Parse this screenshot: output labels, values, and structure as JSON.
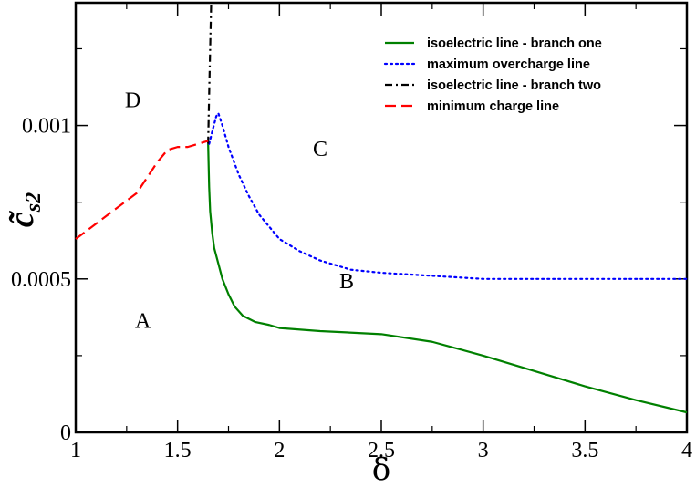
{
  "chart_data": {
    "type": "line",
    "xlabel": "δ",
    "ylabel_main": "c̃",
    "ylabel_sub": "s2",
    "xlim": [
      1,
      4
    ],
    "ylim": [
      0,
      0.0014
    ],
    "x_ticks": [
      1,
      1.5,
      2,
      2.5,
      3,
      3.5,
      4
    ],
    "x_tick_labels": [
      "1",
      "1.5",
      "2",
      "2.5",
      "3",
      "3.5",
      "4"
    ],
    "y_ticks": [
      0,
      0.0005,
      0.001
    ],
    "y_tick_labels": [
      "0",
      "0.0005",
      "0.001"
    ],
    "grid": false,
    "legend_position": "top-right",
    "series": [
      {
        "name": "isoelectric line - branch one",
        "color": "#008000",
        "style": "solid",
        "x": [
          1.65,
          1.655,
          1.66,
          1.67,
          1.68,
          1.7,
          1.72,
          1.75,
          1.78,
          1.82,
          1.88,
          1.95,
          2.0,
          2.2,
          2.5,
          2.75,
          3.0,
          3.25,
          3.5,
          3.75,
          4.0
        ],
        "y": [
          0.00094,
          0.0008,
          0.00072,
          0.00065,
          0.0006,
          0.00055,
          0.0005,
          0.00045,
          0.00041,
          0.00038,
          0.00036,
          0.00035,
          0.00034,
          0.00033,
          0.00032,
          0.000295,
          0.00025,
          0.0002,
          0.00015,
          0.000105,
          6.5e-05
        ]
      },
      {
        "name": "maximum overcharge line",
        "color": "#0000ff",
        "style": "dotted",
        "x": [
          1.655,
          1.67,
          1.69,
          1.7,
          1.72,
          1.75,
          1.8,
          1.85,
          1.9,
          2.0,
          2.1,
          2.2,
          2.35,
          2.5,
          2.75,
          3.0,
          3.5,
          4.0
        ],
        "y": [
          0.00094,
          0.00098,
          0.00103,
          0.00104,
          0.001,
          0.00093,
          0.00084,
          0.00077,
          0.00071,
          0.00063,
          0.00059,
          0.00056,
          0.00053,
          0.00052,
          0.00051,
          0.0005,
          0.0005,
          0.0005
        ]
      },
      {
        "name": "isoelectric line - branch two",
        "color": "#000000",
        "style": "dashdot",
        "x": [
          1.65,
          1.655,
          1.66,
          1.665
        ],
        "y": [
          0.00094,
          0.0011,
          0.00125,
          0.0014
        ]
      },
      {
        "name": "minimum charge line",
        "color": "#ff0000",
        "style": "dashed",
        "x": [
          1.0,
          1.1,
          1.2,
          1.3,
          1.35,
          1.4,
          1.45,
          1.5,
          1.55,
          1.6,
          1.65
        ],
        "y": [
          0.00063,
          0.00068,
          0.00073,
          0.00078,
          0.00083,
          0.00088,
          0.00092,
          0.00093,
          0.00093,
          0.00094,
          0.00095
        ]
      }
    ],
    "annotations": [
      {
        "text": "A",
        "x": 1.33,
        "y": 0.00034
      },
      {
        "text": "B",
        "x": 2.33,
        "y": 0.00047
      },
      {
        "text": "C",
        "x": 2.2,
        "y": 0.0009
      },
      {
        "text": "D",
        "x": 1.28,
        "y": 0.00106
      }
    ]
  }
}
